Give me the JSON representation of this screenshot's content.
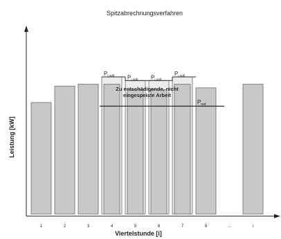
{
  "chart_data": {
    "type": "bar",
    "title": "Spitzabrechnungsverfahren",
    "xlabel": "Viertelstunde [i]",
    "ylabel": "Leistung [kW]",
    "categories": [
      "1",
      "2",
      "3",
      "4",
      "5",
      "6",
      "7",
      "8",
      "...",
      "i"
    ],
    "values": [
      61,
      70,
      71,
      75,
      68,
      68,
      75,
      69,
      null,
      71
    ],
    "ist_values": [
      null,
      null,
      null,
      71,
      68,
      68,
      71,
      null,
      null,
      null
    ],
    "soll_values": [
      null,
      null,
      null,
      75,
      73,
      73,
      75,
      null,
      null,
      null
    ],
    "soll_labels": [
      "P",
      "P",
      "P",
      "P"
    ],
    "soll_label_sub": "i,soll",
    "reduced_level": 59,
    "reduced_label": "P",
    "reduced_label_sub": "red",
    "annotation": "Zu entschädigende, nicht eingespeiste Arbeit",
    "annotation_lines": [
      "Zu entschädigende, nicht",
      "eingespeiste Arbeit"
    ],
    "ylim": [
      0,
      100
    ],
    "grid": false,
    "colors": {
      "bar_fill": "#c8c8c8",
      "bar_stroke": "#6a6a6a",
      "soll_fill": "#ececec",
      "line": "#2a2a2a"
    }
  }
}
